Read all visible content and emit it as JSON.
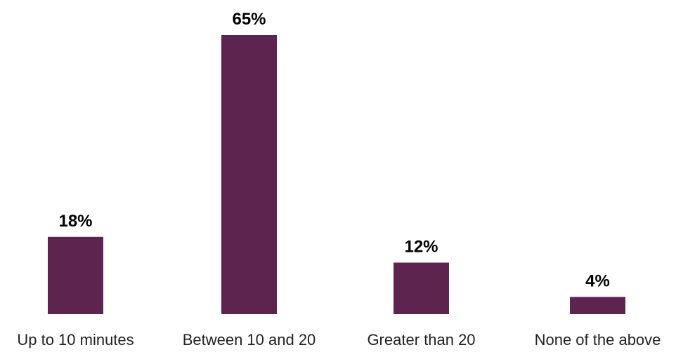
{
  "chart_data": {
    "type": "bar",
    "categories": [
      "Up to 10 minutes",
      "Between 10 and 20",
      "Greater than 20",
      "None of the above"
    ],
    "values": [
      18,
      65,
      12,
      4
    ],
    "value_labels": [
      "18%",
      "65%",
      "12%",
      "4%"
    ],
    "ylim": [
      0,
      65
    ],
    "bar_color": "#5e2450",
    "grid": false,
    "title": "",
    "xlabel": "",
    "ylabel": ""
  }
}
